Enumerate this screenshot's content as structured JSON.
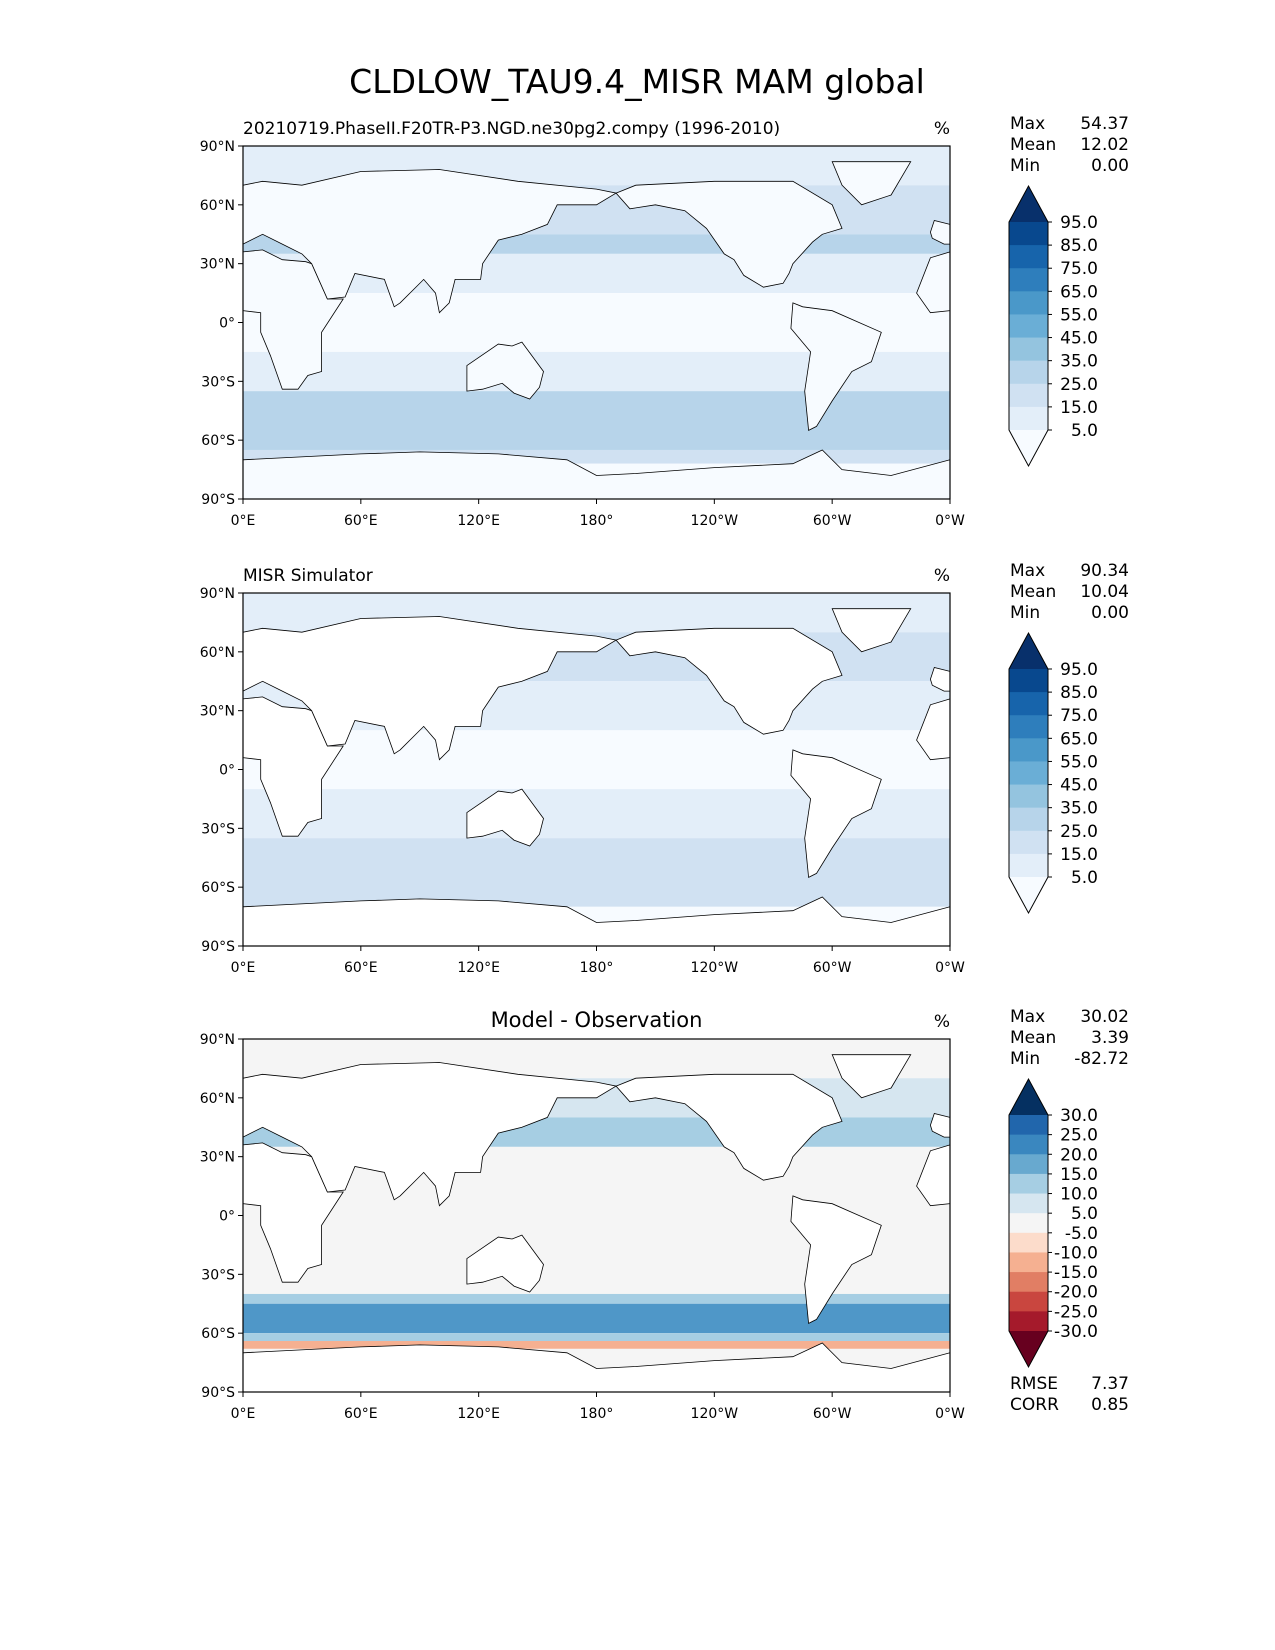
{
  "chart_data": {
    "type": "heatmap",
    "title": "CLDLOW_TAU9.4_MISR MAM global",
    "x_ticks": [
      "0°E",
      "60°E",
      "120°E",
      "180°",
      "120°W",
      "60°W",
      "0°W"
    ],
    "y_ticks": [
      "90°N",
      "60°N",
      "30°N",
      "0°",
      "30°S",
      "60°S",
      "90°S"
    ],
    "panels": [
      {
        "title_left": "20210719.PhaseII.F20TR-P3.NGD.ne30pg2.compy (1996-2010)",
        "title_center": "",
        "units": "%",
        "stats": [
          {
            "label": "Max",
            "value": "54.37"
          },
          {
            "label": "Mean",
            "value": "12.02"
          },
          {
            "label": "Min",
            "value": "0.00"
          }
        ],
        "colorbar": {
          "levels": [
            "95.0",
            "85.0",
            "75.0",
            "65.0",
            "55.0",
            "45.0",
            "35.0",
            "25.0",
            "15.0",
            "5.0"
          ],
          "colors": [
            "#08306b",
            "#08488e",
            "#1764ab",
            "#2e7ebc",
            "#4a98c9",
            "#6aaed6",
            "#94c4df",
            "#b7d4ea",
            "#d0e1f2",
            "#e3eef9",
            "#f7fbff"
          ]
        },
        "field": [
          [
            "#e3eef9",
            90,
            70
          ],
          [
            "#d0e1f2",
            70,
            45
          ],
          [
            "#b7d4ea",
            45,
            35
          ],
          [
            "#e3eef9",
            35,
            15
          ],
          [
            "#f7fbff",
            15,
            -15
          ],
          [
            "#e3eef9",
            -15,
            -35
          ],
          [
            "#b7d4ea",
            -35,
            -65
          ],
          [
            "#d0e1f2",
            -65,
            -72
          ],
          [
            "#f7fbff",
            -72,
            -90
          ]
        ]
      },
      {
        "title_left": "MISR Simulator",
        "title_center": "",
        "units": "%",
        "stats": [
          {
            "label": "Max",
            "value": "90.34"
          },
          {
            "label": "Mean",
            "value": "10.04"
          },
          {
            "label": "Min",
            "value": "0.00"
          }
        ],
        "colorbar": {
          "levels": [
            "95.0",
            "85.0",
            "75.0",
            "65.0",
            "55.0",
            "45.0",
            "35.0",
            "25.0",
            "15.0",
            "5.0"
          ],
          "colors": [
            "#08306b",
            "#08488e",
            "#1764ab",
            "#2e7ebc",
            "#4a98c9",
            "#6aaed6",
            "#94c4df",
            "#b7d4ea",
            "#d0e1f2",
            "#e3eef9",
            "#f7fbff"
          ]
        },
        "field": [
          [
            "#e3eef9",
            90,
            70
          ],
          [
            "#d0e1f2",
            70,
            45
          ],
          [
            "#e3eef9",
            45,
            20
          ],
          [
            "#f7fbff",
            20,
            -10
          ],
          [
            "#e3eef9",
            -10,
            -35
          ],
          [
            "#d0e1f2",
            -35,
            -70
          ],
          [
            "#f7fbff",
            -70,
            -90
          ]
        ]
      },
      {
        "title_left": "",
        "title_center": "Model - Observation",
        "units": "%",
        "stats": [
          {
            "label": "Max",
            "value": "30.02"
          },
          {
            "label": "Mean",
            "value": "3.39"
          },
          {
            "label": "Min",
            "value": "-82.72"
          }
        ],
        "extra_stats": [
          {
            "label": "RMSE",
            "value": "7.37"
          },
          {
            "label": "CORR",
            "value": "0.85"
          }
        ],
        "colorbar": {
          "levels": [
            "30.0",
            "25.0",
            "20.0",
            "15.0",
            "10.0",
            "5.0",
            "-5.0",
            "-10.0",
            "-15.0",
            "-20.0",
            "-25.0",
            "-30.0"
          ],
          "colors": [
            "#053061",
            "#2166ac",
            "#3a87bf",
            "#68a9cf",
            "#a6cee3",
            "#d6e6f0",
            "#f5f5f5",
            "#fcdccb",
            "#f5b091",
            "#e17e64",
            "#c9463f",
            "#a51a2b",
            "#67001f"
          ]
        },
        "field": [
          [
            "#f5f5f5",
            90,
            70
          ],
          [
            "#d6e6f0",
            70,
            50
          ],
          [
            "#a6cee3",
            50,
            35
          ],
          [
            "#f5f5f5",
            35,
            -40
          ],
          [
            "#a6cee3",
            -40,
            -45
          ],
          [
            "#4f97c8",
            -45,
            -60
          ],
          [
            "#a6cee3",
            -60,
            -64
          ],
          [
            "#f5b091",
            -64,
            -68
          ],
          [
            "#f5f5f5",
            -68,
            -90
          ]
        ]
      }
    ]
  }
}
